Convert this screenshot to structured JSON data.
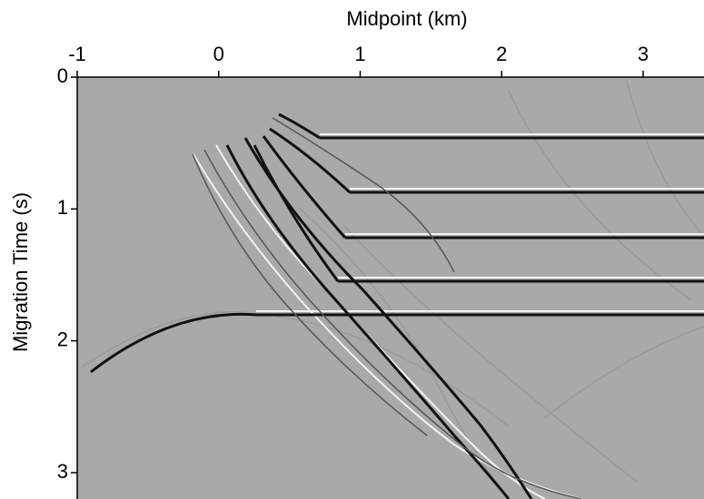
{
  "chart_data": {
    "type": "image",
    "title": "Midpoint (km)",
    "ylabel": "Migration Time (s)",
    "xlim": [
      -1,
      3.43
    ],
    "xticks": [
      -1,
      0,
      1,
      2,
      3
    ],
    "ylim": [
      0,
      3.2
    ],
    "yticks": [
      0,
      1,
      2,
      3
    ],
    "grid": false
  }
}
